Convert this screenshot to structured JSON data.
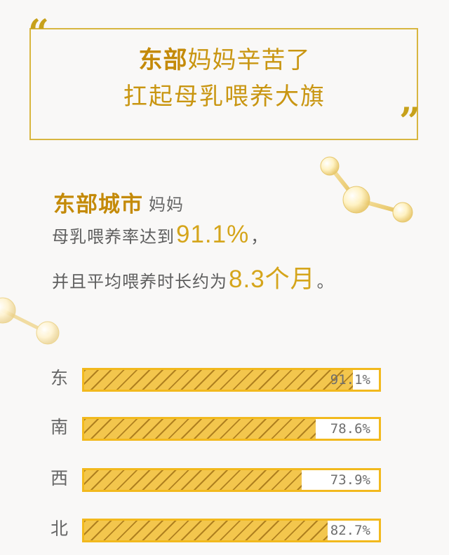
{
  "header": {
    "quote_open": "“",
    "quote_close": "”",
    "headline_line1_strong": "东部",
    "headline_line1_rest": "妈妈辛苦了",
    "headline_line2": "扛起母乳喂养大旗"
  },
  "summary": {
    "region_label": "东部城市",
    "region_sub": "妈妈",
    "line1_prefix": "母乳喂养率达到",
    "line1_stat": "91.1%",
    "line1_suffix": "，",
    "line2_prefix": "并且平均喂养时长约为",
    "line2_stat": "8.3个月",
    "line2_suffix": "。"
  },
  "chart_data": {
    "type": "bar",
    "title": "",
    "categories": [
      "东",
      "南",
      "西",
      "北"
    ],
    "values": [
      91.1,
      78.6,
      73.9,
      82.7
    ],
    "value_labels": [
      "91.1%",
      "78.6%",
      "73.9%",
      "82.7%"
    ],
    "xlabel": "",
    "ylabel": "",
    "xlim": [
      0,
      100
    ],
    "orientation": "horizontal",
    "grid": false,
    "legend": "none"
  },
  "colors": {
    "accent": "#c99612",
    "bar_fill": "#f3c64d",
    "bar_border": "#f2b91d",
    "text": "#5e5e5e",
    "background": "#f9f8f7"
  }
}
